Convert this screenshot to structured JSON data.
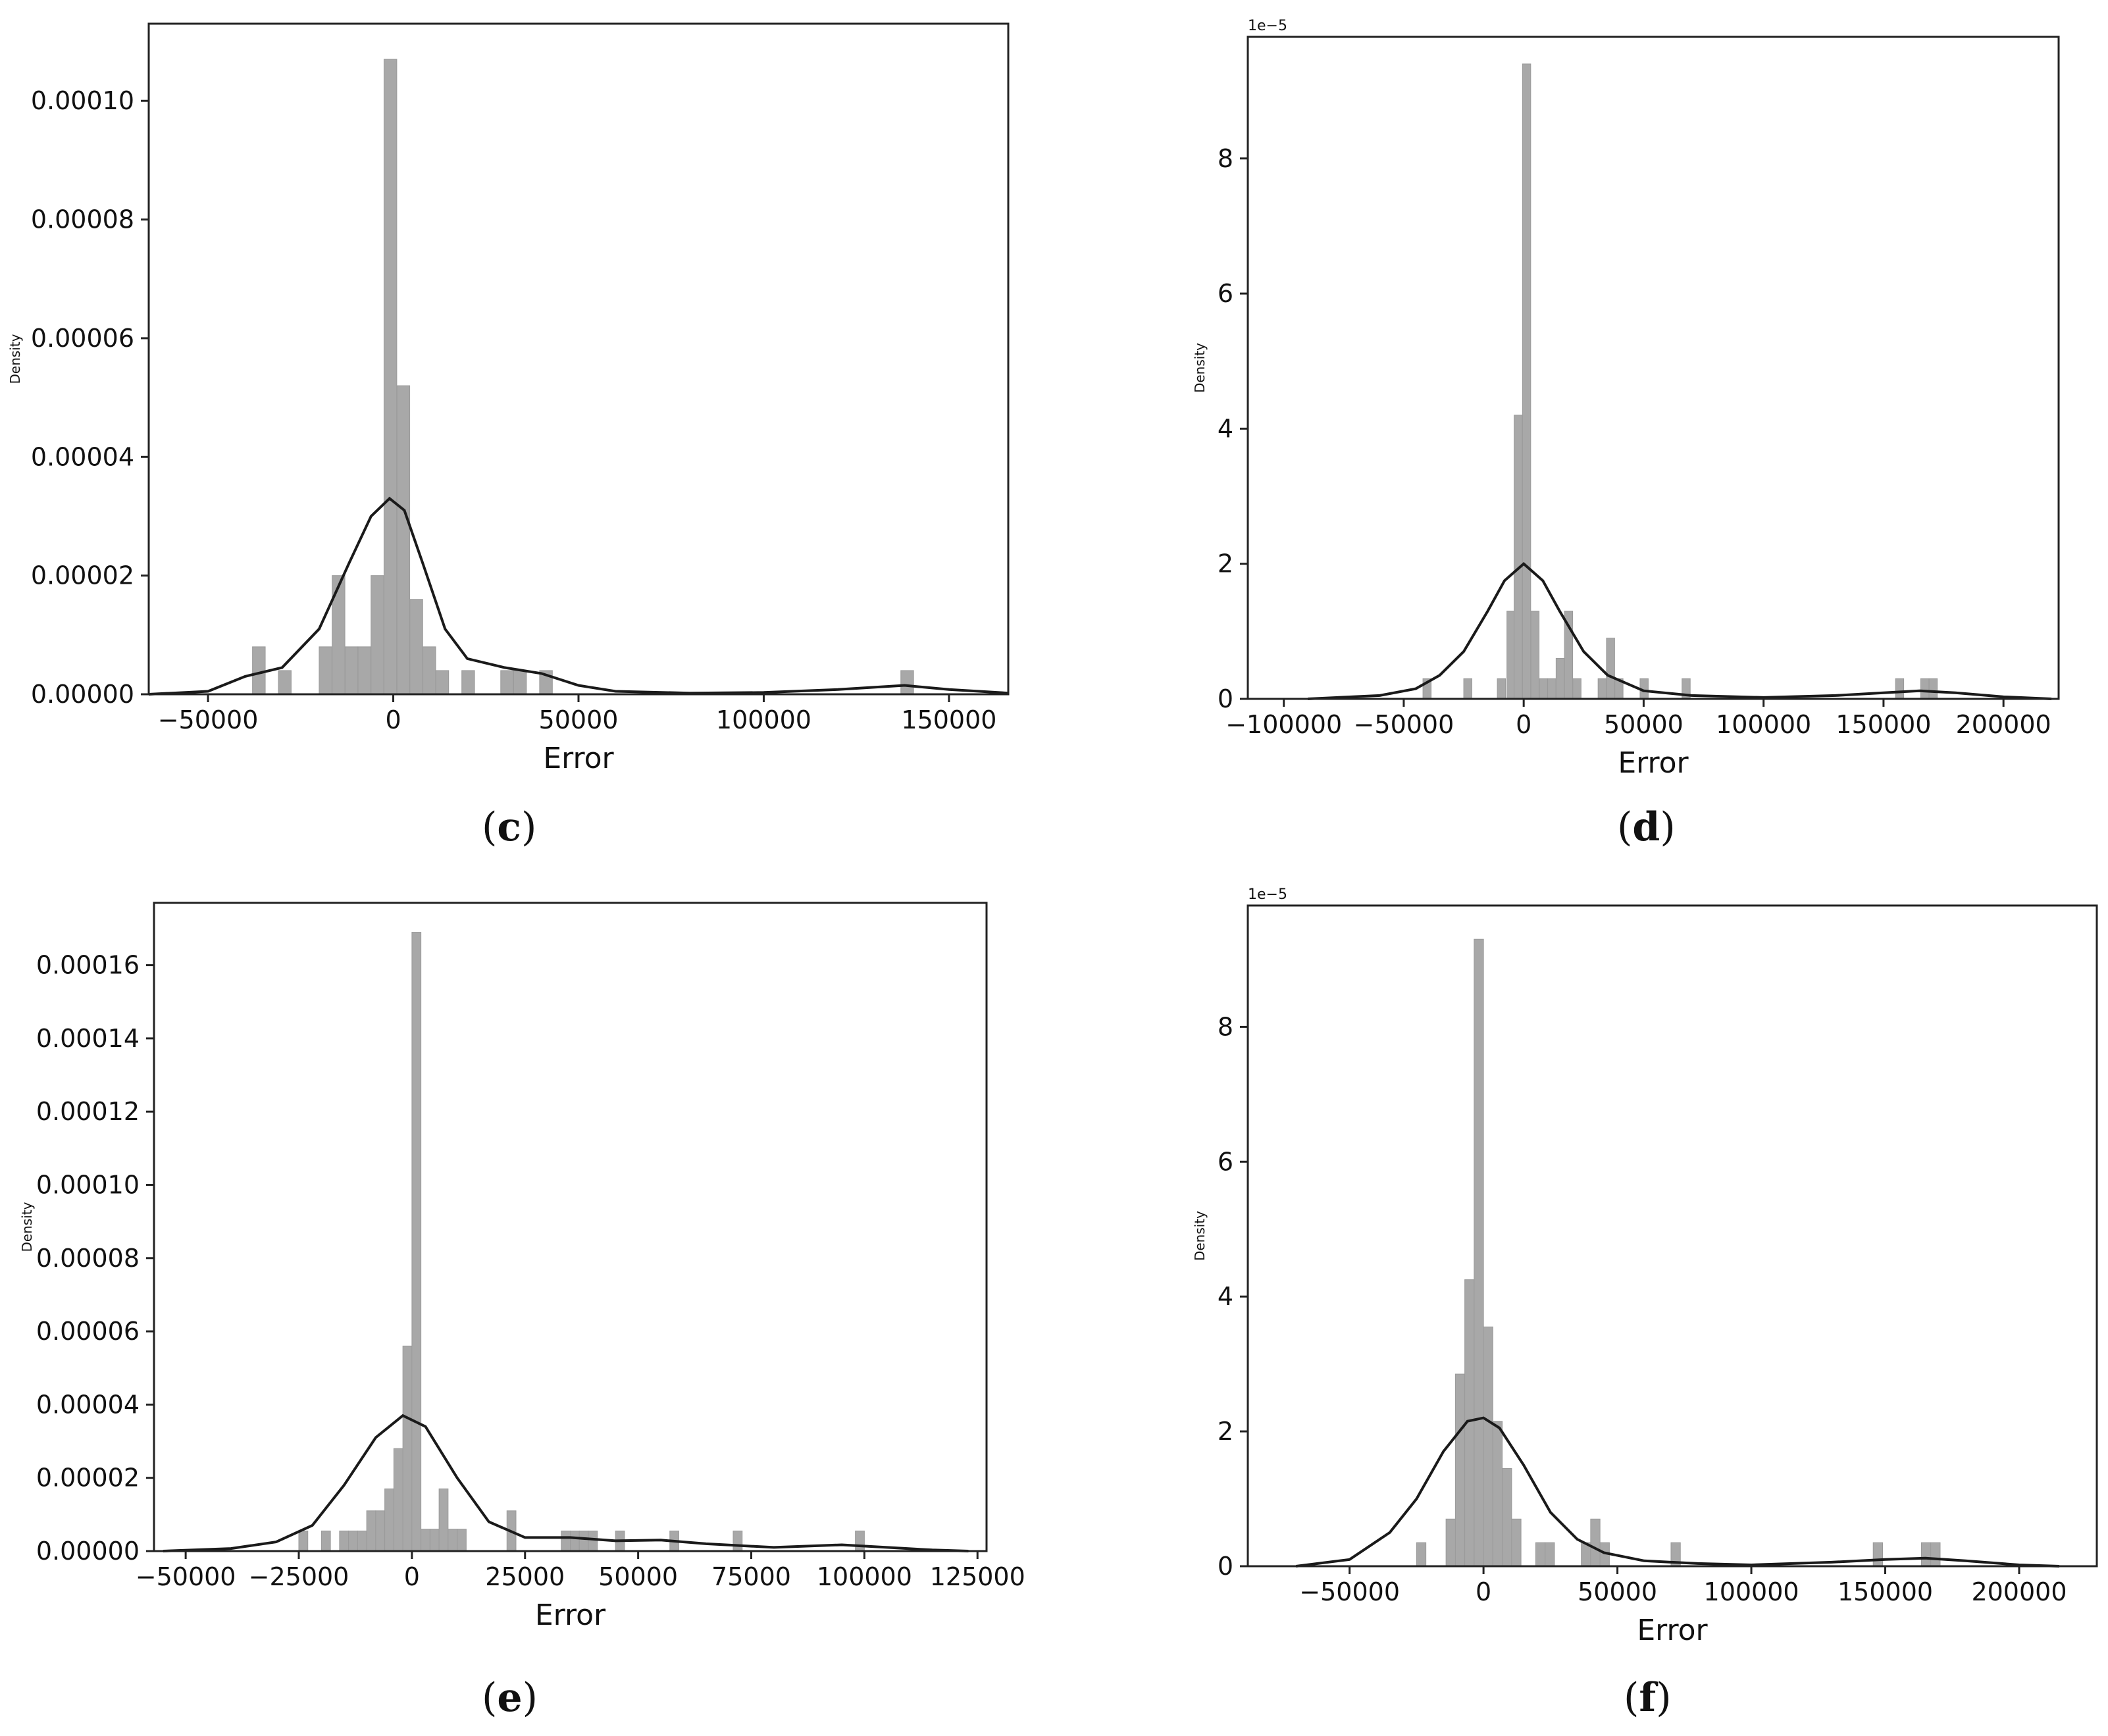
{
  "chart_data": [
    {
      "panel": "c",
      "type": "bar",
      "xlabel": "Error",
      "ylabel": "Density",
      "y_offset_text": "",
      "xlim": [
        -66000,
        166000
      ],
      "ylim": [
        0,
        0.000113
      ],
      "xticks": [
        -50000,
        0,
        50000,
        100000,
        150000
      ],
      "xtick_labels": [
        "−50000",
        "0",
        "50000",
        "100000",
        "150000"
      ],
      "yticks": [
        0,
        2e-05,
        4e-05,
        6e-05,
        8e-05,
        0.0001
      ],
      "ytick_labels": [
        "0.00000",
        "0.00002",
        "0.00004",
        "0.00006",
        "0.00008",
        "0.00010"
      ],
      "bin_width": 3450,
      "bins": [
        [
          -38000,
          8e-06
        ],
        [
          -31000,
          4e-06
        ],
        [
          -20000,
          8e-06
        ],
        [
          -16500,
          2e-05
        ],
        [
          -13000,
          8e-06
        ],
        [
          -9500,
          8e-06
        ],
        [
          -6000,
          2e-05
        ],
        [
          -2500,
          0.000107
        ],
        [
          1000,
          5.2e-05
        ],
        [
          4500,
          1.6e-05
        ],
        [
          8000,
          8e-06
        ],
        [
          11500,
          4e-06
        ],
        [
          18500,
          4e-06
        ],
        [
          29000,
          4e-06
        ],
        [
          32500,
          4e-06
        ],
        [
          39500,
          4e-06
        ],
        [
          137000,
          4e-06
        ]
      ],
      "kde": [
        [
          -66000,
          0
        ],
        [
          -50000,
          5e-07
        ],
        [
          -40000,
          3e-06
        ],
        [
          -30000,
          4.5e-06
        ],
        [
          -20000,
          1.1e-05
        ],
        [
          -12000,
          2.2e-05
        ],
        [
          -6000,
          3e-05
        ],
        [
          -1000,
          3.3e-05
        ],
        [
          3000,
          3.1e-05
        ],
        [
          8000,
          2.2e-05
        ],
        [
          14000,
          1.1e-05
        ],
        [
          20000,
          6e-06
        ],
        [
          30000,
          4.5e-06
        ],
        [
          40000,
          3.5e-06
        ],
        [
          50000,
          1.5e-06
        ],
        [
          60000,
          5e-07
        ],
        [
          80000,
          2e-07
        ],
        [
          100000,
          3e-07
        ],
        [
          120000,
          8e-07
        ],
        [
          138000,
          1.5e-06
        ],
        [
          150000,
          8e-07
        ],
        [
          166000,
          2e-07
        ]
      ]
    },
    {
      "panel": "d",
      "type": "bar",
      "xlabel": "Error",
      "ylabel": "Density",
      "y_offset_text": "1e−5",
      "xlim": [
        -115000,
        223000
      ],
      "ylim": [
        0,
        9.8
      ],
      "xticks": [
        -100000,
        -50000,
        0,
        50000,
        100000,
        150000,
        200000
      ],
      "xtick_labels": [
        "−100000",
        "−50000",
        "0",
        "50000",
        "100000",
        "150000",
        "200000"
      ],
      "yticks": [
        0,
        2,
        4,
        6,
        8
      ],
      "ytick_labels": [
        "0",
        "2",
        "4",
        "6",
        "8"
      ],
      "bin_width": 3420,
      "bins": [
        [
          -42000,
          0.3
        ],
        [
          -25000,
          0.3
        ],
        [
          -11000,
          0.3
        ],
        [
          -7000,
          1.3
        ],
        [
          -4000,
          4.2
        ],
        [
          -500,
          9.4
        ],
        [
          3000,
          1.3
        ],
        [
          6500,
          0.3
        ],
        [
          10000,
          0.3
        ],
        [
          13500,
          0.6
        ],
        [
          17000,
          1.3
        ],
        [
          20500,
          0.3
        ],
        [
          31000,
          0.3
        ],
        [
          34500,
          0.9
        ],
        [
          38000,
          0.3
        ],
        [
          48500,
          0.3
        ],
        [
          66000,
          0.3
        ],
        [
          155000,
          0.3
        ],
        [
          165500,
          0.3
        ],
        [
          169000,
          0.3
        ]
      ],
      "kde": [
        [
          -90000,
          0
        ],
        [
          -60000,
          0.05
        ],
        [
          -45000,
          0.15
        ],
        [
          -35000,
          0.35
        ],
        [
          -25000,
          0.7
        ],
        [
          -15000,
          1.3
        ],
        [
          -8000,
          1.75
        ],
        [
          0,
          2.0
        ],
        [
          8000,
          1.75
        ],
        [
          15000,
          1.3
        ],
        [
          25000,
          0.7
        ],
        [
          35000,
          0.35
        ],
        [
          50000,
          0.12
        ],
        [
          70000,
          0.05
        ],
        [
          100000,
          0.02
        ],
        [
          130000,
          0.05
        ],
        [
          150000,
          0.09
        ],
        [
          165000,
          0.12
        ],
        [
          180000,
          0.09
        ],
        [
          200000,
          0.03
        ],
        [
          220000,
          0
        ]
      ]
    },
    {
      "panel": "e",
      "type": "bar",
      "xlabel": "Error",
      "ylabel": "Density",
      "y_offset_text": "",
      "xlim": [
        -57000,
        127000
      ],
      "ylim": [
        0,
        0.000177
      ],
      "xticks": [
        -50000,
        -25000,
        0,
        25000,
        50000,
        75000,
        100000,
        125000
      ],
      "xtick_labels": [
        "−50000",
        "−25000",
        "0",
        "25000",
        "50000",
        "75000",
        "100000",
        "125000"
      ],
      "yticks": [
        0,
        2e-05,
        4e-05,
        6e-05,
        8e-05,
        0.0001,
        0.00012,
        0.00014,
        0.00016
      ],
      "ytick_labels": [
        "0.00000",
        "0.00002",
        "0.00004",
        "0.00006",
        "0.00008",
        "0.00010",
        "0.00012",
        "0.00014",
        "0.00016"
      ],
      "bin_width": 2000,
      "bins": [
        [
          -25000,
          5.5e-06
        ],
        [
          -20000,
          5.5e-06
        ],
        [
          -16000,
          5.5e-06
        ],
        [
          -14000,
          5.5e-06
        ],
        [
          -12000,
          5.5e-06
        ],
        [
          -10000,
          1.1e-05
        ],
        [
          -8000,
          1.1e-05
        ],
        [
          -6000,
          1.7e-05
        ],
        [
          -4000,
          2.8e-05
        ],
        [
          -2000,
          5.6e-05
        ],
        [
          0,
          0.000169
        ],
        [
          2000,
          6e-06
        ],
        [
          4000,
          6e-06
        ],
        [
          6000,
          1.7e-05
        ],
        [
          8000,
          6e-06
        ],
        [
          10000,
          6e-06
        ],
        [
          21000,
          1.1e-05
        ],
        [
          33000,
          5.5e-06
        ],
        [
          35000,
          5.5e-06
        ],
        [
          37000,
          5.5e-06
        ],
        [
          39000,
          5.5e-06
        ],
        [
          45000,
          5.5e-06
        ],
        [
          57000,
          5.5e-06
        ],
        [
          71000,
          5.5e-06
        ],
        [
          98000,
          5.5e-06
        ]
      ],
      "kde": [
        [
          -55000,
          0
        ],
        [
          -40000,
          7e-07
        ],
        [
          -30000,
          2.5e-06
        ],
        [
          -22000,
          7e-06
        ],
        [
          -15000,
          1.8e-05
        ],
        [
          -8000,
          3.1e-05
        ],
        [
          -2000,
          3.7e-05
        ],
        [
          3000,
          3.4e-05
        ],
        [
          10000,
          2e-05
        ],
        [
          17000,
          8e-06
        ],
        [
          25000,
          3.7e-06
        ],
        [
          35000,
          3.7e-06
        ],
        [
          45000,
          2.8e-06
        ],
        [
          55000,
          3e-06
        ],
        [
          65000,
          2e-06
        ],
        [
          80000,
          1e-06
        ],
        [
          95000,
          1.7e-06
        ],
        [
          105000,
          1e-06
        ],
        [
          115000,
          3e-07
        ],
        [
          123000,
          0
        ]
      ]
    },
    {
      "panel": "f",
      "type": "bar",
      "xlabel": "Error",
      "ylabel": "Density",
      "y_offset_text": "1e−5",
      "xlim": [
        -88000,
        229000
      ],
      "ylim": [
        0,
        9.8
      ],
      "xticks": [
        -50000,
        0,
        50000,
        100000,
        150000,
        200000
      ],
      "xtick_labels": [
        "−50000",
        "0",
        "50000",
        "100000",
        "150000",
        "200000"
      ],
      "yticks": [
        0,
        2,
        4,
        6,
        8
      ],
      "ytick_labels": [
        "0",
        "2",
        "4",
        "6",
        "8"
      ],
      "bin_width": 3510,
      "bins": [
        [
          -25000,
          0.35
        ],
        [
          -14000,
          0.7
        ],
        [
          -10500,
          2.85
        ],
        [
          -7000,
          4.25
        ],
        [
          -3500,
          9.3
        ],
        [
          0,
          3.55
        ],
        [
          3500,
          2.15
        ],
        [
          7000,
          1.45
        ],
        [
          10500,
          0.7
        ],
        [
          19500,
          0.35
        ],
        [
          23000,
          0.35
        ],
        [
          36500,
          0.35
        ],
        [
          40000,
          0.7
        ],
        [
          43500,
          0.35
        ],
        [
          70000,
          0.35
        ],
        [
          145500,
          0.35
        ],
        [
          163500,
          0.35
        ],
        [
          167000,
          0.35
        ]
      ],
      "kde": [
        [
          -70000,
          0
        ],
        [
          -50000,
          0.1
        ],
        [
          -35000,
          0.5
        ],
        [
          -25000,
          1.0
        ],
        [
          -15000,
          1.7
        ],
        [
          -6000,
          2.15
        ],
        [
          0,
          2.2
        ],
        [
          6000,
          2.05
        ],
        [
          15000,
          1.5
        ],
        [
          25000,
          0.8
        ],
        [
          35000,
          0.4
        ],
        [
          45000,
          0.2
        ],
        [
          60000,
          0.08
        ],
        [
          80000,
          0.04
        ],
        [
          100000,
          0.02
        ],
        [
          130000,
          0.06
        ],
        [
          150000,
          0.1
        ],
        [
          165000,
          0.12
        ],
        [
          180000,
          0.08
        ],
        [
          200000,
          0.02
        ],
        [
          215000,
          0
        ]
      ]
    }
  ],
  "captions": {
    "c": "c",
    "d": "d",
    "e": "e",
    "f": "f"
  }
}
